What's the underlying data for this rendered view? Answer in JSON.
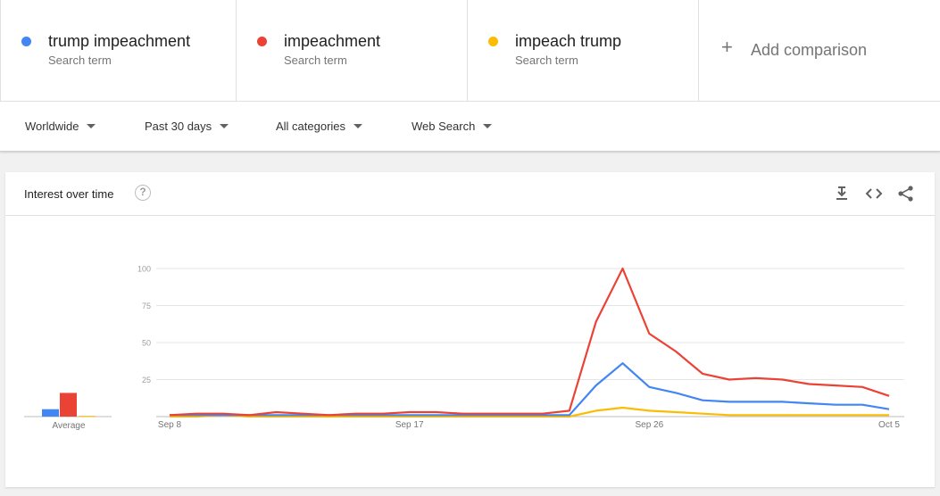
{
  "terms": [
    {
      "name": "trump impeachment",
      "sub": "Search term",
      "color": "#4285f4"
    },
    {
      "name": "impeachment",
      "sub": "Search term",
      "color": "#ea4335"
    },
    {
      "name": "impeach trump",
      "sub": "Search term",
      "color": "#fbbc04"
    }
  ],
  "add_comparison": {
    "icon": "plus-icon",
    "label": "Add comparison"
  },
  "filters": {
    "region": "Worldwide",
    "time": "Past 30 days",
    "category": "All categories",
    "search_type": "Web Search"
  },
  "card": {
    "title": "Interest over time",
    "icons": [
      "help-icon",
      "download-icon",
      "embed-icon",
      "share-icon"
    ]
  },
  "chart_data": {
    "type": "line",
    "title": "",
    "xlabel": "",
    "ylabel": "",
    "ylim": [
      0,
      100
    ],
    "yticks": [
      "25",
      "50",
      "75",
      "100"
    ],
    "xticks": [
      {
        "label": "Sep 8",
        "index": 0
      },
      {
        "label": "Sep 17",
        "index": 9
      },
      {
        "label": "Sep 26",
        "index": 18
      },
      {
        "label": "Oct 5",
        "index": 27
      }
    ],
    "grid": true,
    "x": [
      "Sep 8",
      "Sep 9",
      "Sep 10",
      "Sep 11",
      "Sep 12",
      "Sep 13",
      "Sep 14",
      "Sep 15",
      "Sep 16",
      "Sep 17",
      "Sep 18",
      "Sep 19",
      "Sep 20",
      "Sep 21",
      "Sep 22",
      "Sep 23",
      "Sep 24",
      "Sep 25",
      "Sep 26",
      "Sep 27",
      "Sep 28",
      "Sep 29",
      "Sep 30",
      "Oct 1",
      "Oct 2",
      "Oct 3",
      "Oct 4",
      "Oct 5"
    ],
    "series": [
      {
        "name": "trump impeachment",
        "color": "#4285f4",
        "values": [
          1,
          1,
          1,
          1,
          1,
          1,
          1,
          1,
          1,
          1,
          1,
          1,
          1,
          1,
          1,
          1,
          21,
          36,
          20,
          16,
          11,
          10,
          10,
          10,
          9,
          8,
          8,
          5
        ]
      },
      {
        "name": "impeachment",
        "color": "#ea4335",
        "values": [
          1,
          2,
          2,
          1,
          3,
          2,
          1,
          2,
          2,
          3,
          3,
          2,
          2,
          2,
          2,
          4,
          64,
          100,
          56,
          44,
          29,
          25,
          26,
          25,
          22,
          21,
          20,
          14
        ]
      },
      {
        "name": "impeach trump",
        "color": "#fbbc04",
        "values": [
          0,
          0,
          1,
          0,
          0,
          0,
          0,
          0,
          0,
          0,
          0,
          0,
          0,
          0,
          0,
          0,
          4,
          6,
          4,
          3,
          2,
          1,
          1,
          1,
          1,
          1,
          1,
          1
        ]
      }
    ],
    "average": {
      "label": "Average",
      "values": [
        5,
        16,
        0.5
      ]
    }
  }
}
